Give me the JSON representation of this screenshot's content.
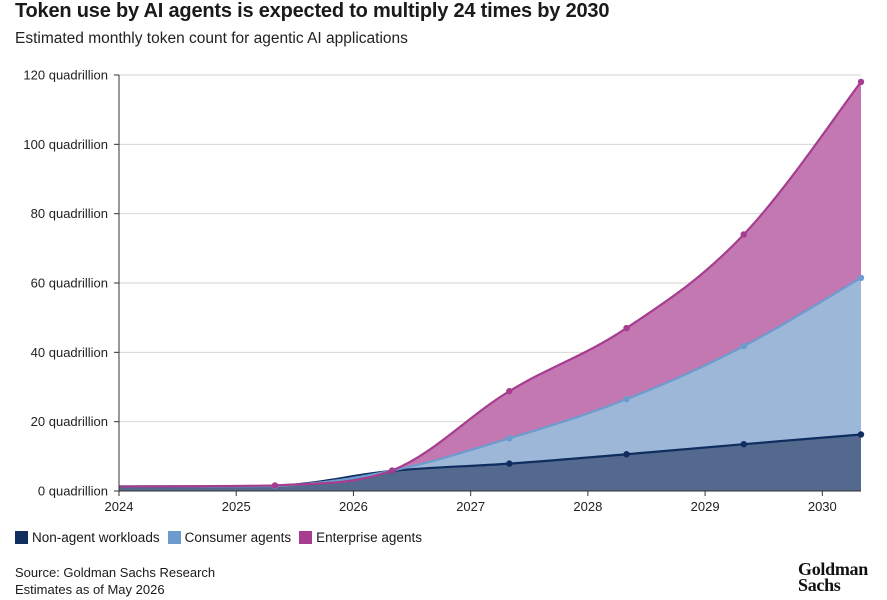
{
  "title": "Token use by AI agents is expected to multiply 24 times by 2030",
  "subtitle": "Estimated monthly token count for agentic AI applications",
  "source_line": "Source: Goldman Sachs Research",
  "estimate_line": "Estimates as of May 2026",
  "brand": {
    "line1": "Goldman",
    "line2": "Sachs"
  },
  "colors": {
    "non_agent": "#0f2d5e",
    "consumer": "#6e9bcd",
    "enterprise": "#a63d8f",
    "grid": "#d6d6d6"
  },
  "legend": [
    {
      "label": "Non-agent workloads",
      "color": "#0f2d5e"
    },
    {
      "label": "Consumer agents",
      "color": "#6e9bcd"
    },
    {
      "label": "Enterprise agents",
      "color": "#a63d8f"
    }
  ],
  "chart_data": {
    "type": "area",
    "stacked": true,
    "x_ticks": [
      "2024",
      "2025",
      "2026",
      "2027",
      "2028",
      "2029",
      "2030"
    ],
    "y_ticks": [
      "0 quadrillion",
      "20 quadrillion",
      "40 quadrillion",
      "60 quadrillion",
      "80 quadrillion",
      "100 quadrillion",
      "120 quadrillion"
    ],
    "ylim": [
      0,
      120
    ],
    "xlim": [
      2024.0,
      2030.33
    ],
    "grid": true,
    "x": [
      2024.0,
      2025.33,
      2026.33,
      2027.33,
      2028.33,
      2029.33,
      2030.33
    ],
    "series": [
      {
        "name": "Non-agent workloads",
        "cumulative": [
          1.3,
          1.4,
          5.8,
          7.9,
          10.6,
          13.5,
          16.3
        ]
      },
      {
        "name": "Consumer agents",
        "cumulative": [
          1.3,
          1.4,
          5.9,
          15.2,
          26.5,
          41.8,
          61.5
        ]
      },
      {
        "name": "Enterprise agents",
        "cumulative": [
          1.3,
          1.6,
          5.9,
          28.8,
          47.0,
          74.0,
          118.0
        ]
      }
    ]
  }
}
